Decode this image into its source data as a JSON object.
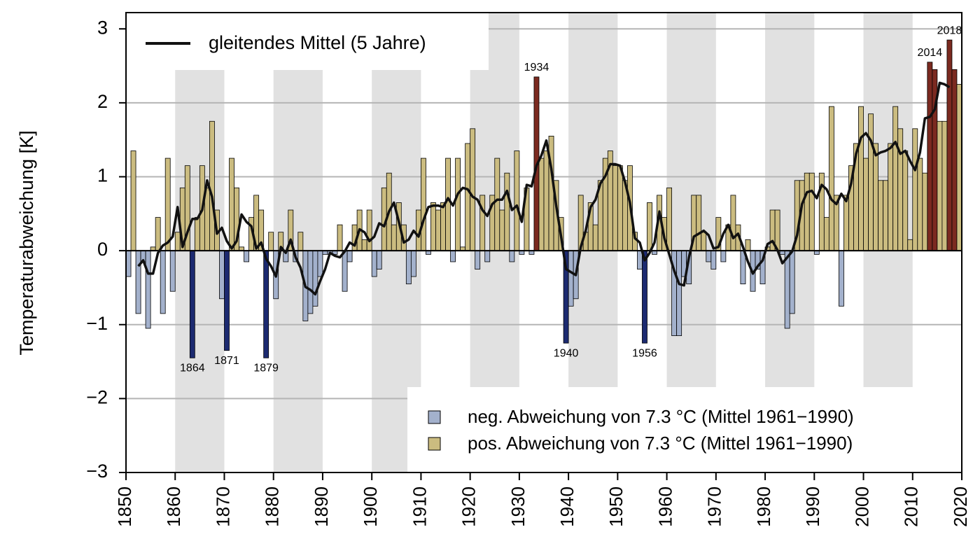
{
  "chart_data": {
    "type": "bar",
    "ylabel": "Temperaturabweichung  [K]",
    "xlim": [
      1850,
      2020
    ],
    "xticks": [
      1850,
      1860,
      1870,
      1880,
      1890,
      1900,
      1910,
      1920,
      1930,
      1940,
      1950,
      1960,
      1970,
      1980,
      1990,
      2000,
      2010,
      2020
    ],
    "ylim": [
      -3,
      3.22
    ],
    "yticks": [
      {
        "value": -3,
        "label": "−3"
      },
      {
        "value": -2,
        "label": "−2"
      },
      {
        "value": -1,
        "label": "−1"
      },
      0,
      1,
      2,
      3
    ],
    "grid": true,
    "bar_legend": [
      {
        "name": "neg. Abweichung von 7.3 °C (Mittel 1961−1990)",
        "color": "#a3b1cc"
      },
      {
        "name": "pos. Abweichung von 7.3 °C (Mittel 1961−1990)",
        "color": "#cbbc80"
      }
    ],
    "extreme_colors": {
      "negative": "#1c2a70",
      "positive": "#7b2a20"
    },
    "highlighted": [
      1864,
      1871,
      1879,
      1934,
      1940,
      1956,
      2014,
      2015,
      2018,
      2019
    ],
    "annotations": [
      1864,
      1871,
      1879,
      1934,
      1940,
      1956,
      2014,
      2018
    ],
    "x": [
      1851,
      1852,
      1853,
      1854,
      1855,
      1856,
      1857,
      1858,
      1859,
      1860,
      1861,
      1862,
      1863,
      1864,
      1865,
      1866,
      1867,
      1868,
      1869,
      1870,
      1871,
      1872,
      1873,
      1874,
      1875,
      1876,
      1877,
      1878,
      1879,
      1880,
      1881,
      1882,
      1883,
      1884,
      1885,
      1886,
      1887,
      1888,
      1889,
      1890,
      1891,
      1892,
      1893,
      1894,
      1895,
      1896,
      1897,
      1898,
      1899,
      1900,
      1901,
      1902,
      1903,
      1904,
      1905,
      1906,
      1907,
      1908,
      1909,
      1910,
      1911,
      1912,
      1913,
      1914,
      1915,
      1916,
      1917,
      1918,
      1919,
      1920,
      1921,
      1922,
      1923,
      1924,
      1925,
      1926,
      1927,
      1928,
      1929,
      1930,
      1931,
      1932,
      1933,
      1934,
      1935,
      1936,
      1937,
      1938,
      1939,
      1940,
      1941,
      1942,
      1943,
      1944,
      1945,
      1946,
      1947,
      1948,
      1949,
      1950,
      1951,
      1952,
      1953,
      1954,
      1955,
      1956,
      1957,
      1958,
      1959,
      1960,
      1961,
      1962,
      1963,
      1964,
      1965,
      1966,
      1967,
      1968,
      1969,
      1970,
      1971,
      1972,
      1973,
      1974,
      1975,
      1976,
      1977,
      1978,
      1979,
      1980,
      1981,
      1982,
      1983,
      1984,
      1985,
      1986,
      1987,
      1988,
      1989,
      1990,
      1991,
      1992,
      1993,
      1994,
      1995,
      1996,
      1997,
      1998,
      1999,
      2000,
      2001,
      2002,
      2003,
      2004,
      2005,
      2006,
      2007,
      2008,
      2009,
      2010,
      2011,
      2012,
      2013,
      2014,
      2015,
      2016,
      2017,
      2018,
      2019,
      2020
    ],
    "values": [
      -0.35,
      1.35,
      -0.85,
      -0.15,
      -1.05,
      0.05,
      0.45,
      -0.85,
      1.25,
      -0.55,
      0.25,
      0.85,
      1.15,
      -1.45,
      0.45,
      1.15,
      0.85,
      1.75,
      0.55,
      -0.65,
      -1.35,
      1.25,
      0.85,
      0.05,
      -0.15,
      0.45,
      0.75,
      0.55,
      -1.45,
      0.25,
      -0.65,
      0.25,
      -0.15,
      0.55,
      -0.15,
      0.25,
      -0.95,
      -0.85,
      -0.75,
      -0.35,
      -0.05,
      -0.05,
      -0.05,
      0.35,
      -0.55,
      -0.15,
      0.35,
      0.55,
      0.15,
      0.55,
      -0.35,
      -0.25,
      0.85,
      1.05,
      0.35,
      0.65,
      0.35,
      -0.45,
      -0.35,
      0.55,
      1.25,
      -0.05,
      0.65,
      0.55,
      0.65,
      1.25,
      -0.15,
      1.25,
      0.05,
      1.45,
      1.65,
      -0.25,
      0.75,
      -0.15,
      0.75,
      1.25,
      0.55,
      1.05,
      -0.15,
      1.35,
      -0.05,
      0.85,
      -0.05,
      2.35,
      1.25,
      1.35,
      1.55,
      0.95,
      0.45,
      -1.25,
      -0.75,
      -0.65,
      0.75,
      0.25,
      0.65,
      0.35,
      0.95,
      1.25,
      1.35,
      1.15,
      1.15,
      0.95,
      1.15,
      0.25,
      -0.25,
      -1.25,
      0.65,
      -0.05,
      0.75,
      0.45,
      0.85,
      -1.15,
      -1.15,
      -0.35,
      -0.45,
      0.75,
      0.75,
      0.25,
      -0.15,
      -0.25,
      0.45,
      -0.15,
      0.35,
      0.75,
      0.35,
      -0.45,
      0.15,
      -0.55,
      -0.25,
      -0.45,
      0.05,
      0.55,
      0.55,
      -0.05,
      -1.05,
      -0.85,
      0.95,
      0.95,
      1.05,
      1.05,
      -0.05,
      1.05,
      0.45,
      1.95,
      0.75,
      -0.75,
      0.75,
      1.15,
      1.45,
      1.95,
      1.25,
      1.85,
      1.45,
      0.95,
      0.95,
      1.45,
      1.95,
      1.65,
      1.35,
      0.15,
      1.65,
      1.25,
      1.05,
      2.55,
      2.45,
      1.75,
      1.75,
      2.85,
      2.45,
      2.25
    ],
    "line": {
      "type": "line",
      "name": "gleitendes Mittel (5 Jahre)",
      "color": "#111111",
      "x": [
        1853,
        1854,
        1855,
        1856,
        1857,
        1858,
        1859,
        1860,
        1861,
        1862,
        1863,
        1864,
        1865,
        1866,
        1867,
        1868,
        1869,
        1870,
        1871,
        1872,
        1873,
        1874,
        1875,
        1876,
        1877,
        1878,
        1879,
        1880,
        1881,
        1882,
        1883,
        1884,
        1885,
        1886,
        1887,
        1888,
        1889,
        1890,
        1891,
        1892,
        1893,
        1894,
        1895,
        1896,
        1897,
        1898,
        1899,
        1900,
        1901,
        1902,
        1903,
        1904,
        1905,
        1906,
        1907,
        1908,
        1909,
        1910,
        1911,
        1912,
        1913,
        1914,
        1915,
        1916,
        1917,
        1918,
        1919,
        1920,
        1921,
        1922,
        1923,
        1924,
        1925,
        1926,
        1927,
        1928,
        1929,
        1930,
        1931,
        1932,
        1933,
        1934,
        1935,
        1936,
        1937,
        1938,
        1939,
        1940,
        1941,
        1942,
        1943,
        1944,
        1945,
        1946,
        1947,
        1948,
        1949,
        1950,
        1951,
        1952,
        1953,
        1954,
        1955,
        1956,
        1957,
        1958,
        1959,
        1960,
        1961,
        1962,
        1963,
        1964,
        1965,
        1966,
        1967,
        1968,
        1969,
        1970,
        1971,
        1972,
        1973,
        1974,
        1975,
        1976,
        1977,
        1978,
        1979,
        1980,
        1981,
        1982,
        1983,
        1984,
        1985,
        1986,
        1987,
        1988,
        1989,
        1990,
        1991,
        1992,
        1993,
        1994,
        1995,
        1996,
        1997,
        1998,
        1999,
        2000,
        2001,
        2002,
        2003,
        2004,
        2005,
        2006,
        2007,
        2008,
        2009,
        2010,
        2011,
        2012,
        2013,
        2014,
        2015,
        2016,
        2017,
        2018
      ],
      "values": [
        -0.21,
        -0.13,
        -0.31,
        -0.31,
        -0.03,
        0.07,
        0.11,
        0.19,
        0.59,
        0.05,
        0.25,
        0.43,
        0.43,
        0.55,
        0.95,
        0.73,
        0.23,
        0.31,
        0.13,
        0.03,
        0.13,
        0.49,
        0.39,
        0.33,
        0.03,
        0.11,
        -0.11,
        -0.21,
        -0.35,
        0.05,
        -0.03,
        0.15,
        -0.09,
        -0.23,
        -0.49,
        -0.53,
        -0.59,
        -0.41,
        -0.25,
        -0.03,
        -0.07,
        -0.09,
        -0.01,
        0.11,
        0.07,
        0.29,
        0.25,
        0.13,
        0.19,
        0.37,
        0.33,
        0.53,
        0.65,
        0.39,
        0.11,
        0.15,
        0.27,
        0.19,
        0.41,
        0.59,
        0.61,
        0.61,
        0.59,
        0.71,
        0.61,
        0.77,
        0.85,
        0.83,
        0.73,
        0.69,
        0.55,
        0.47,
        0.63,
        0.69,
        0.69,
        0.81,
        0.55,
        0.61,
        0.39,
        0.89,
        0.87,
        1.15,
        1.29,
        1.49,
        1.11,
        0.61,
        0.19,
        -0.25,
        -0.29,
        -0.33,
        0.05,
        0.27,
        0.59,
        0.69,
        0.91,
        1.01,
        1.17,
        1.17,
        1.15,
        0.93,
        0.65,
        0.17,
        0.11,
        -0.13,
        -0.03,
        0.11,
        0.53,
        0.17,
        -0.05,
        -0.27,
        -0.45,
        -0.47,
        -0.09,
        0.19,
        0.23,
        0.27,
        0.21,
        0.03,
        0.05,
        0.23,
        0.35,
        0.17,
        0.23,
        0.05,
        -0.15,
        -0.31,
        -0.21,
        -0.13,
        0.09,
        0.13,
        0.01,
        -0.17,
        -0.09,
        -0.01,
        0.21,
        0.63,
        0.79,
        0.81,
        0.71,
        0.89,
        0.83,
        0.69,
        0.63,
        0.77,
        0.67,
        0.91,
        1.31,
        1.53,
        1.59,
        1.49,
        1.29,
        1.33,
        1.35,
        1.39,
        1.47,
        1.31,
        1.35,
        1.21,
        1.09,
        1.33,
        1.79,
        1.81,
        1.91,
        2.27,
        2.25,
        2.21
      ]
    }
  }
}
